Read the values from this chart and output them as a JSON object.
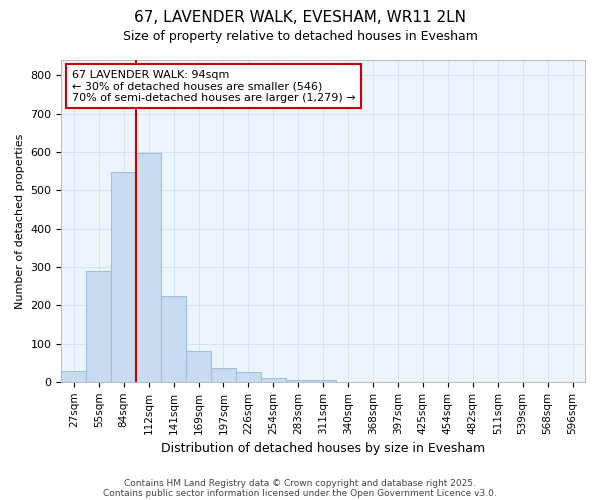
{
  "title": "67, LAVENDER WALK, EVESHAM, WR11 2LN",
  "subtitle": "Size of property relative to detached houses in Evesham",
  "xlabel": "Distribution of detached houses by size in Evesham",
  "ylabel": "Number of detached properties",
  "bar_labels": [
    "27sqm",
    "55sqm",
    "84sqm",
    "112sqm",
    "141sqm",
    "169sqm",
    "197sqm",
    "226sqm",
    "254sqm",
    "283sqm",
    "311sqm",
    "340sqm",
    "368sqm",
    "397sqm",
    "425sqm",
    "454sqm",
    "482sqm",
    "511sqm",
    "539sqm",
    "568sqm",
    "596sqm"
  ],
  "bar_values": [
    28,
    290,
    548,
    597,
    225,
    80,
    37,
    25,
    10,
    5,
    5,
    0,
    0,
    0,
    0,
    0,
    0,
    0,
    0,
    0,
    0
  ],
  "bar_color": "#c8dbf0",
  "bar_edge_color": "#a0bedd",
  "red_line_x": 2.5,
  "annotation_title": "67 LAVENDER WALK: 94sqm",
  "annotation_line2": "← 30% of detached houses are smaller (546)",
  "annotation_line3": "70% of semi-detached houses are larger (1,279) →",
  "annotation_box_facecolor": "#ffffff",
  "annotation_box_edgecolor": "#cc0000",
  "ylim": [
    0,
    840
  ],
  "yticks": [
    0,
    100,
    200,
    300,
    400,
    500,
    600,
    700,
    800
  ],
  "grid_color": "#d0dff0",
  "plot_bg_color": "#eef4fc",
  "fig_bg_color": "#ffffff",
  "footnote1": "Contains HM Land Registry data © Crown copyright and database right 2025.",
  "footnote2": "Contains public sector information licensed under the Open Government Licence v3.0."
}
